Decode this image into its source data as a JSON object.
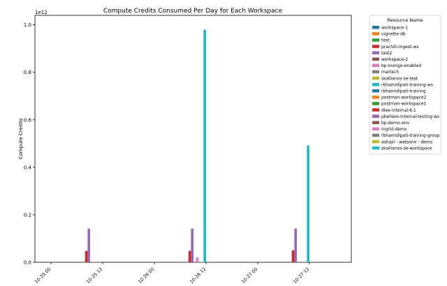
{
  "chart_data": {
    "type": "bar",
    "title": "Compute Credits Consumed Per Day for Each Workspace",
    "xlabel": "",
    "ylabel": "Compute Credits",
    "y_offset_label": "1e12",
    "ylim": [
      0,
      1.04
    ],
    "y_ticks": [
      "0.0",
      "0.2",
      "0.4",
      "0.6",
      "0.8",
      "1.0"
    ],
    "y_tick_values": [
      0,
      0.2,
      0.4,
      0.6,
      0.8,
      1.0
    ],
    "x_tick_labels": [
      "10-25 00",
      "10-25 12",
      "10-26 00",
      "10-26 12",
      "10-27 00",
      "10-27 12"
    ],
    "grid": false,
    "legend": {
      "title": "Resource Name",
      "placement": "outside-right"
    },
    "groups": [
      "10-25 12",
      "10-26 12",
      "10-27 12"
    ],
    "series": [
      {
        "name": "workspace-1",
        "color": "#1f77b4",
        "values": [
          0,
          0,
          0
        ]
      },
      {
        "name": "vignette-db",
        "color": "#ff7f0e",
        "values": [
          0,
          0,
          0
        ]
      },
      {
        "name": "test",
        "color": "#2ca02c",
        "values": [
          0,
          0,
          0
        ]
      },
      {
        "name": "prachiti-ingest-ws",
        "color": "#d62728",
        "values": [
          0.048,
          0.048,
          0.05
        ]
      },
      {
        "name": "test2",
        "color": "#9467bd",
        "values": [
          0.142,
          0.142,
          0.142
        ]
      },
      {
        "name": "workspace-2",
        "color": "#8c564b",
        "values": [
          0,
          0,
          0
        ]
      },
      {
        "name": "bp-mongo-enabled",
        "color": "#e377c2",
        "values": [
          0.002,
          0.02,
          0
        ]
      },
      {
        "name": "martech",
        "color": "#7f7f7f",
        "values": [
          0,
          0,
          0
        ]
      },
      {
        "name": "skallianos-se-test",
        "color": "#bcbd22",
        "values": [
          0,
          0.002,
          0
        ]
      },
      {
        "name": "rbhamidipati-training-ws",
        "color": "#17becf",
        "values": [
          0,
          0.98,
          0.492
        ]
      },
      {
        "name": "rbhamidipati-training",
        "color": "#1f77b4",
        "values": [
          0,
          0,
          0
        ]
      },
      {
        "name": "postman-workspace2",
        "color": "#ff7f0e",
        "values": [
          0,
          0,
          0
        ]
      },
      {
        "name": "postman-workspace1",
        "color": "#2ca02c",
        "values": [
          0,
          0,
          0
        ]
      },
      {
        "name": "dlee-internal-6.1",
        "color": "#d62728",
        "values": [
          0,
          0,
          0
        ]
      },
      {
        "name": "pbehere-internal-testing-ws",
        "color": "#9467bd",
        "values": [
          0,
          0,
          0
        ]
      },
      {
        "name": "bp-demo-env",
        "color": "#8c564b",
        "values": [
          0,
          0,
          0
        ]
      },
      {
        "name": "ingrid-demo",
        "color": "#e377c2",
        "values": [
          0,
          0,
          0
        ]
      },
      {
        "name": "rbhamidipati-training-group",
        "color": "#7f7f7f",
        "values": [
          0,
          0,
          0
        ]
      },
      {
        "name": "ashajil - watsonx - demo",
        "color": "#bcbd22",
        "values": [
          0,
          0,
          0
        ]
      },
      {
        "name": "skallianos-se-workspace",
        "color": "#17becf",
        "values": [
          0,
          0,
          0
        ]
      }
    ]
  }
}
